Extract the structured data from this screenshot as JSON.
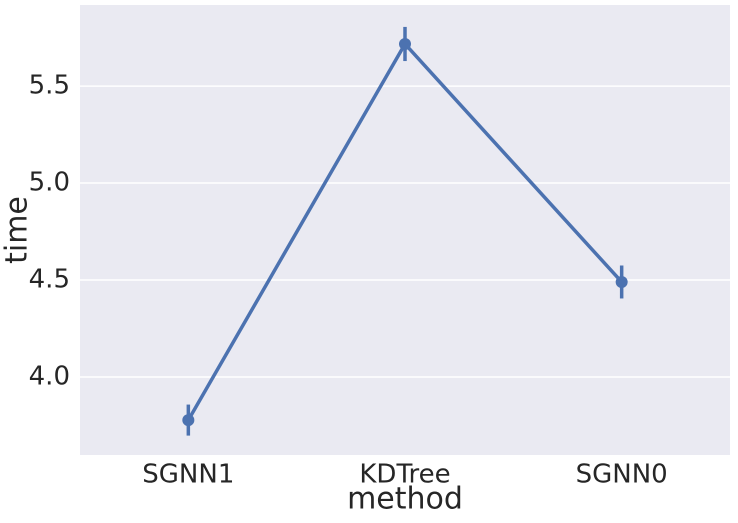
{
  "chart_data": {
    "type": "pointplot",
    "x_label": "method",
    "y_label": "time",
    "categories": [
      "SGNN1",
      "KDTree",
      "SGNN0"
    ],
    "values": [
      3.778,
      5.717,
      4.49
    ],
    "errors": [
      0.08,
      0.088,
      0.085
    ],
    "color": "#4c72b0",
    "ylim": [
      3.598,
      5.918
    ],
    "yticks": [
      {
        "value": 4,
        "label": "4.0"
      },
      4.5,
      {
        "value": 5,
        "label": "5.0"
      },
      5.5
    ],
    "grid": true
  }
}
